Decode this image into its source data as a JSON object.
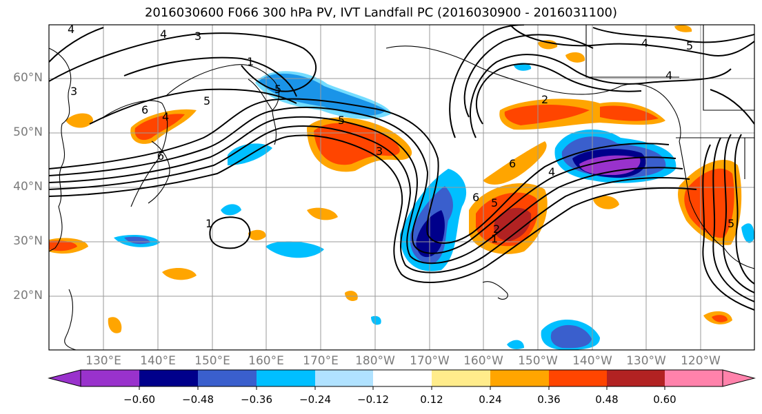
{
  "title": "2016030600 F066 300 hPa PV, IVT Landfall PC (2016030900 - 2016031100)",
  "lat_labels": [
    "60°N",
    "50°N",
    "40°N",
    "30°N",
    "20°N"
  ],
  "lon_labels": [
    "130°E",
    "140°E",
    "150°E",
    "160°E",
    "170°E",
    "180°W",
    "170°W",
    "160°W",
    "150°W",
    "140°W",
    "130°W",
    "120°W"
  ],
  "colorbar": {
    "ticks": [
      "−0.60",
      "−0.48",
      "−0.36",
      "−0.24",
      "−0.12",
      "0.12",
      "0.24",
      "0.36",
      "0.48",
      "0.60"
    ],
    "colors": [
      "#9932cc",
      "#00008b",
      "#3a5fcd",
      "#00bfff",
      "#b0e2ff",
      "#ffffff",
      "#ffec8b",
      "#ffa500",
      "#ff4500",
      "#b22222",
      "#ff82ab"
    ]
  },
  "contour_labels": [
    "4",
    "3",
    "4",
    "1",
    "3",
    "5",
    "5",
    "6",
    "4",
    "1",
    "5",
    "3",
    "6",
    "2",
    "4",
    "6",
    "5",
    "2",
    "1",
    "6",
    "4",
    "5",
    "4",
    "5"
  ]
}
